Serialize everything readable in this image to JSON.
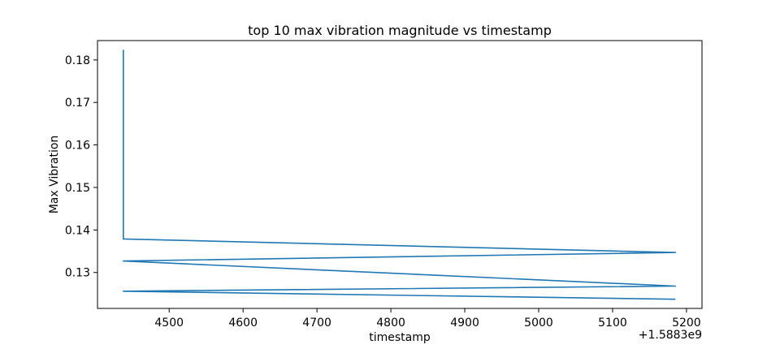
{
  "chart_data": {
    "type": "line",
    "title": "top 10 max vibration magnitude vs timestamp",
    "xlabel": "timestamp",
    "ylabel": "Max Vibration",
    "x_offset_label": "+1.5883e9",
    "xlim": [
      4403,
      5221
    ],
    "ylim": [
      0.12155,
      0.18455
    ],
    "xticks": [
      4500,
      4600,
      4700,
      4800,
      4900,
      5000,
      5100,
      5200
    ],
    "xtick_labels": [
      "4500",
      "4600",
      "4700",
      "4800",
      "4900",
      "5000",
      "5100",
      "5200"
    ],
    "yticks": [
      0.13,
      0.14,
      0.15,
      0.16,
      0.17,
      0.18
    ],
    "ytick_labels": [
      "0.13",
      "0.14",
      "0.15",
      "0.16",
      "0.17",
      "0.18"
    ],
    "grid": false,
    "legend": "none",
    "color": "#1f77b4",
    "series": [
      {
        "x": [
          4438,
          4438,
          4438,
          5185,
          4438,
          5185,
          4438,
          5185
        ],
        "y": [
          0.1824,
          0.1379,
          0.1379,
          0.1347,
          0.1327,
          0.1268,
          0.1256,
          0.1237
        ]
      }
    ]
  }
}
